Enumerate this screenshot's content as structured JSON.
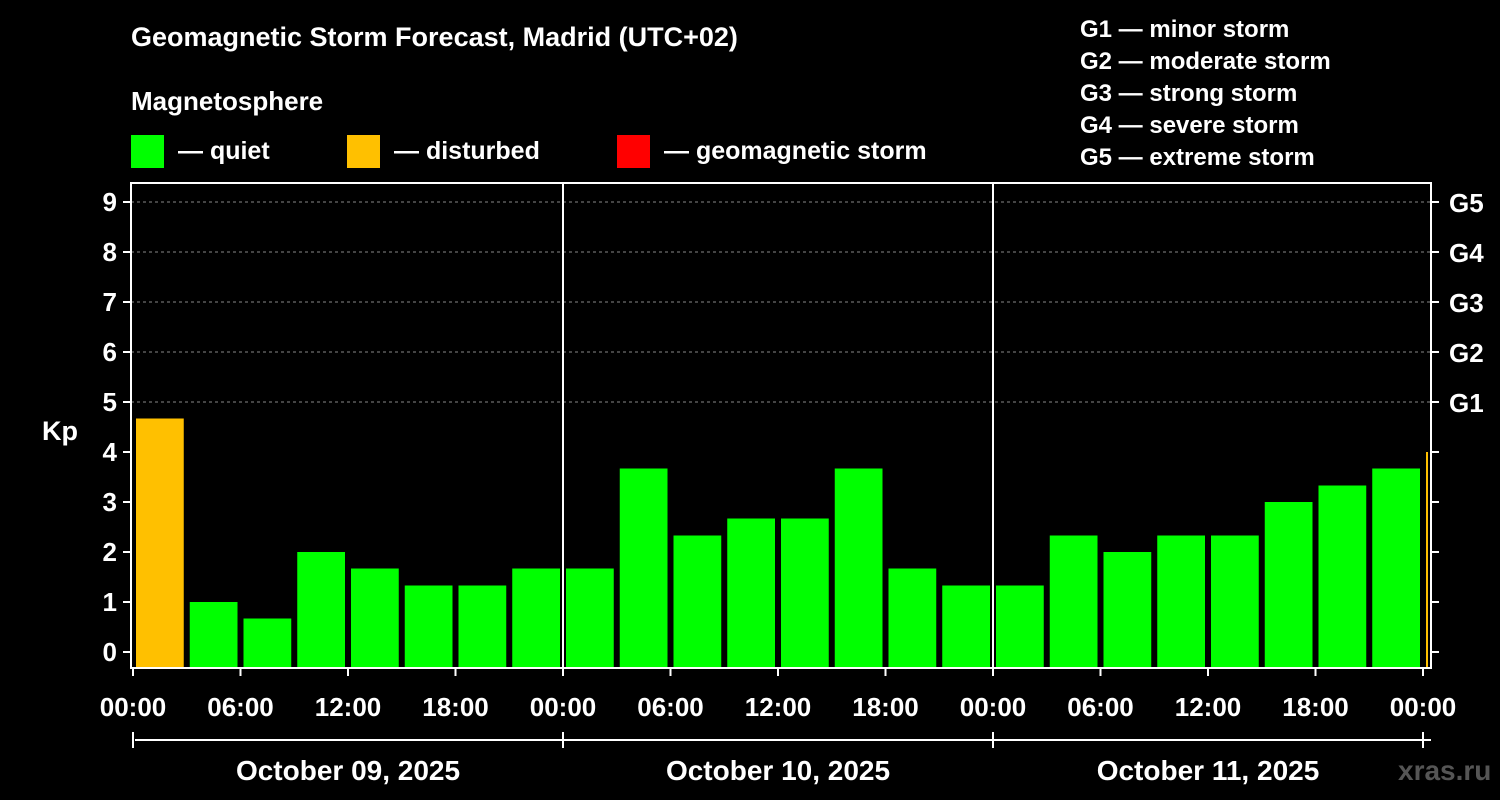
{
  "title": "Geomagnetic Storm Forecast, Madrid (UTC+02)",
  "subtitle": "Magnetosphere",
  "legend": [
    {
      "label": "— quiet",
      "color": "#00ff00"
    },
    {
      "label": "— disturbed",
      "color": "#ffc000"
    },
    {
      "label": "— geomagnetic storm",
      "color": "#ff0000"
    }
  ],
  "storm_scale": [
    "G1 — minor storm",
    "G2 — moderate storm",
    "G3 — strong storm",
    "G4 — severe storm",
    "G5 — extreme storm"
  ],
  "watermark": "xras.ru",
  "colors": {
    "quiet": "#00ff00",
    "disturbed": "#ffc000",
    "storm": "#ff0000",
    "background": "#000000",
    "grid": "#888888"
  },
  "chart_data": {
    "type": "bar",
    "ylabel": "Kp",
    "ylim": [
      0,
      9
    ],
    "y_ticks": [
      0,
      1,
      2,
      3,
      4,
      5,
      6,
      7,
      8,
      9
    ],
    "right_ticks": [
      {
        "value": 5,
        "label": "G1"
      },
      {
        "value": 6,
        "label": "G2"
      },
      {
        "value": 7,
        "label": "G3"
      },
      {
        "value": 8,
        "label": "G4"
      },
      {
        "value": 9,
        "label": "G5"
      }
    ],
    "x_tick_labels": [
      "00:00",
      "06:00",
      "12:00",
      "18:00",
      "00:00",
      "06:00",
      "12:00",
      "18:00",
      "00:00",
      "06:00",
      "12:00",
      "18:00",
      "00:00"
    ],
    "x_hours_range": [
      0,
      72
    ],
    "days": [
      "October 09, 2025",
      "October 10, 2025",
      "October 11, 2025"
    ],
    "bar_hours": [
      0,
      3,
      6,
      9,
      12,
      15,
      18,
      21,
      24,
      27,
      30,
      33,
      36,
      39,
      42,
      45,
      48,
      51,
      54,
      57,
      60,
      63,
      66,
      69,
      72
    ],
    "values": [
      4.67,
      1.0,
      0.67,
      2.0,
      1.67,
      1.33,
      1.33,
      1.67,
      1.67,
      3.67,
      2.33,
      2.67,
      2.67,
      3.67,
      1.67,
      1.33,
      1.33,
      2.33,
      2.0,
      2.33,
      2.33,
      3.0,
      3.33,
      3.67,
      4.0
    ],
    "status": [
      "disturbed",
      "quiet",
      "quiet",
      "quiet",
      "quiet",
      "quiet",
      "quiet",
      "quiet",
      "quiet",
      "quiet",
      "quiet",
      "quiet",
      "quiet",
      "quiet",
      "quiet",
      "quiet",
      "quiet",
      "quiet",
      "quiet",
      "quiet",
      "quiet",
      "quiet",
      "quiet",
      "quiet",
      "disturbed"
    ]
  }
}
